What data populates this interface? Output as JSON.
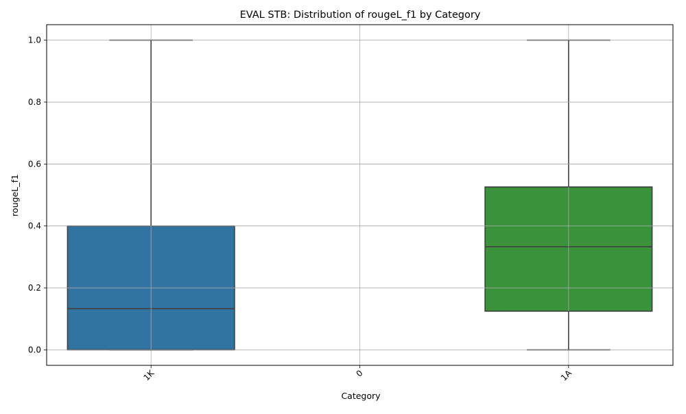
{
  "chart_data": {
    "type": "box",
    "title": "EVAL STB: Distribution of rougeL_f1 by Category",
    "xlabel": "Category",
    "ylabel": "rougeL_f1",
    "ylim": [
      -0.05,
      1.05
    ],
    "yticks": [
      0.0,
      0.2,
      0.4,
      0.6,
      0.8,
      1.0
    ],
    "ytick_labels": [
      "0.0",
      "0.2",
      "0.4",
      "0.6",
      "0.8",
      "1.0"
    ],
    "categories": [
      "1K",
      "0",
      "1A"
    ],
    "grid": true,
    "boxes": [
      {
        "category": "1K",
        "whisker_low": 0.0,
        "q1": 0.0,
        "median": 0.133,
        "q3": 0.4,
        "whisker_high": 1.0,
        "color": "#3274a1"
      },
      {
        "category": "0",
        "whisker_low": null,
        "q1": null,
        "median": null,
        "q3": null,
        "whisker_high": null,
        "color": null
      },
      {
        "category": "1A",
        "whisker_low": 0.0,
        "q1": 0.125,
        "median": 0.333,
        "q3": 0.526,
        "whisker_high": 1.0,
        "color": "#3a923a"
      }
    ]
  }
}
